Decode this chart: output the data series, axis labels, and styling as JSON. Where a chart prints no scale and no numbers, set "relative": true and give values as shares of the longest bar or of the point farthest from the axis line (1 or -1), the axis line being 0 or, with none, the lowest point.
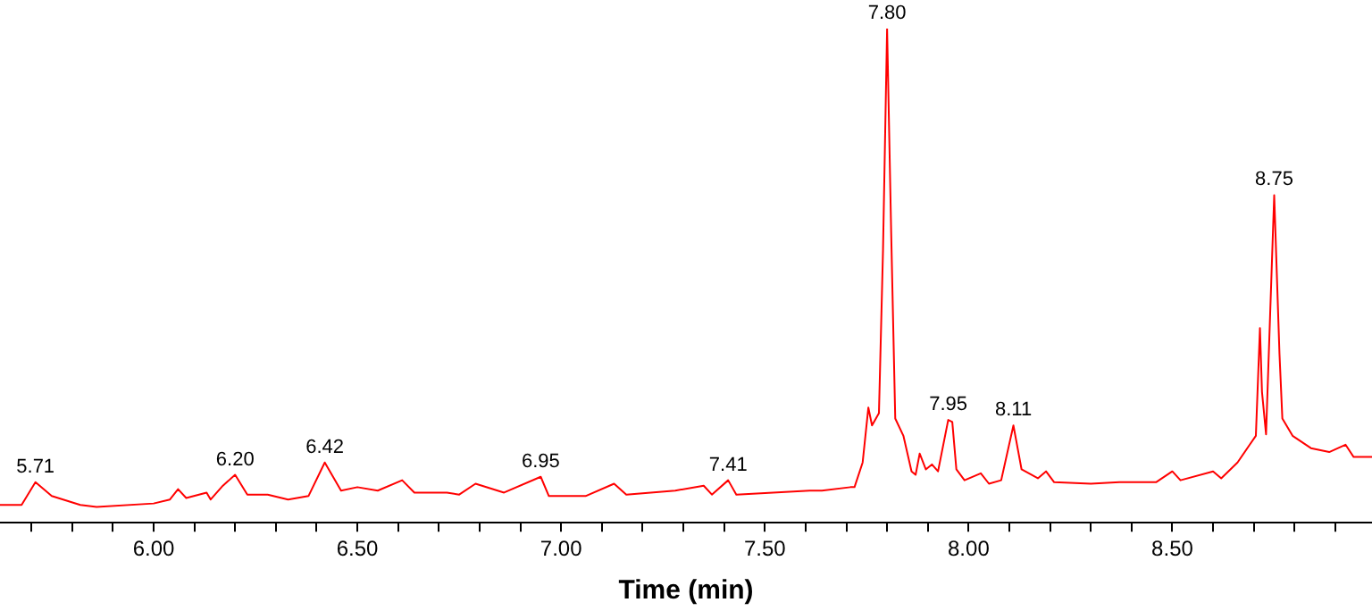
{
  "chart_data": {
    "type": "line",
    "relative": true,
    "xlabel": "Time (min)",
    "xlim": [
      5.623,
      8.99
    ],
    "xticks": [
      {
        "value": 5.7,
        "label": null
      },
      {
        "value": 5.8,
        "label": null
      },
      {
        "value": 5.9,
        "label": null
      },
      {
        "value": 6.0,
        "label": "6.00"
      },
      {
        "value": 6.1,
        "label": null
      },
      {
        "value": 6.2,
        "label": null
      },
      {
        "value": 6.3,
        "label": null
      },
      {
        "value": 6.4,
        "label": null
      },
      {
        "value": 6.5,
        "label": "6.50"
      },
      {
        "value": 6.6,
        "label": null
      },
      {
        "value": 6.7,
        "label": null
      },
      {
        "value": 6.8,
        "label": null
      },
      {
        "value": 6.9,
        "label": null
      },
      {
        "value": 7.0,
        "label": "7.00"
      },
      {
        "value": 7.1,
        "label": null
      },
      {
        "value": 7.2,
        "label": null
      },
      {
        "value": 7.3,
        "label": null
      },
      {
        "value": 7.4,
        "label": null
      },
      {
        "value": 7.5,
        "label": "7.50"
      },
      {
        "value": 7.6,
        "label": null
      },
      {
        "value": 7.7,
        "label": null
      },
      {
        "value": 7.8,
        "label": null
      },
      {
        "value": 7.9,
        "label": null
      },
      {
        "value": 8.0,
        "label": "8.00"
      },
      {
        "value": 8.1,
        "label": null
      },
      {
        "value": 8.2,
        "label": null
      },
      {
        "value": 8.3,
        "label": null
      },
      {
        "value": 8.4,
        "label": null
      },
      {
        "value": 8.5,
        "label": "8.50"
      },
      {
        "value": 8.6,
        "label": null
      },
      {
        "value": 8.7,
        "label": null
      },
      {
        "value": 8.8,
        "label": null
      },
      {
        "value": 8.9,
        "label": null
      }
    ],
    "x": [
      5.623,
      5.676,
      5.71,
      5.75,
      5.82,
      5.86,
      6.0,
      6.04,
      6.06,
      6.08,
      6.13,
      6.14,
      6.17,
      6.2,
      6.23,
      6.28,
      6.33,
      6.38,
      6.42,
      6.46,
      6.5,
      6.55,
      6.61,
      6.64,
      6.72,
      6.75,
      6.79,
      6.86,
      6.95,
      6.97,
      7.06,
      7.13,
      7.16,
      7.28,
      7.35,
      7.37,
      7.41,
      7.43,
      7.52,
      7.61,
      7.64,
      7.71,
      7.72,
      7.74,
      7.754,
      7.763,
      7.78,
      7.79,
      7.8,
      7.81,
      7.82,
      7.84,
      7.86,
      7.87,
      7.88,
      7.895,
      7.91,
      7.925,
      7.95,
      7.96,
      7.97,
      7.99,
      8.03,
      8.05,
      8.08,
      8.11,
      8.13,
      8.17,
      8.19,
      8.21,
      8.3,
      8.37,
      8.46,
      8.5,
      8.52,
      8.6,
      8.62,
      8.66,
      8.69,
      8.705,
      8.715,
      8.72,
      8.73,
      8.75,
      8.763,
      8.77,
      8.795,
      8.84,
      8.885,
      8.925,
      8.945,
      8.99
    ],
    "series": [
      {
        "color": "#ff0000",
        "values": [
          0.036,
          0.036,
          0.082,
          0.054,
          0.036,
          0.032,
          0.039,
          0.047,
          0.068,
          0.05,
          0.061,
          0.047,
          0.075,
          0.097,
          0.057,
          0.057,
          0.047,
          0.054,
          0.122,
          0.065,
          0.072,
          0.065,
          0.086,
          0.061,
          0.061,
          0.057,
          0.079,
          0.061,
          0.093,
          0.054,
          0.054,
          0.079,
          0.057,
          0.065,
          0.075,
          0.057,
          0.086,
          0.057,
          0.061,
          0.065,
          0.065,
          0.072,
          0.072,
          0.122,
          0.233,
          0.197,
          0.222,
          0.552,
          1.0,
          0.588,
          0.211,
          0.176,
          0.104,
          0.097,
          0.14,
          0.108,
          0.118,
          0.104,
          0.208,
          0.204,
          0.108,
          0.086,
          0.1,
          0.079,
          0.086,
          0.197,
          0.108,
          0.09,
          0.104,
          0.082,
          0.079,
          0.082,
          0.082,
          0.104,
          0.086,
          0.104,
          0.09,
          0.122,
          0.158,
          0.176,
          0.394,
          0.265,
          0.179,
          0.663,
          0.341,
          0.211,
          0.176,
          0.151,
          0.143,
          0.158,
          0.133,
          0.133
        ]
      }
    ],
    "annotations": [
      {
        "text": "5.71",
        "x": 5.71,
        "y": 0.082
      },
      {
        "text": "6.20",
        "x": 6.2,
        "y": 0.097
      },
      {
        "text": "6.42",
        "x": 6.42,
        "y": 0.122
      },
      {
        "text": "6.95",
        "x": 6.95,
        "y": 0.093
      },
      {
        "text": "7.41",
        "x": 7.41,
        "y": 0.086
      },
      {
        "text": "7.80",
        "x": 7.8,
        "y": 1.0
      },
      {
        "text": "7.95",
        "x": 7.95,
        "y": 0.208
      },
      {
        "text": "8.11",
        "x": 8.11,
        "y": 0.197
      },
      {
        "text": "8.75",
        "x": 8.75,
        "y": 0.663
      }
    ]
  }
}
